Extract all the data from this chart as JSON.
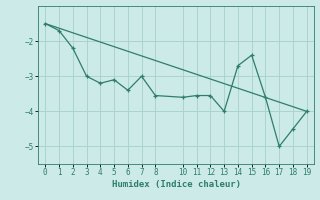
{
  "title": "",
  "xlabel": "Humidex (Indice chaleur)",
  "bg_color": "#cceae7",
  "line_color": "#2e7d6e",
  "grid_color": "#aad4d0",
  "x_data": [
    0,
    1,
    2,
    3,
    4,
    5,
    6,
    7,
    8,
    10,
    11,
    12,
    13,
    14,
    15,
    16,
    17,
    18,
    19
  ],
  "y_data": [
    -1.5,
    -1.7,
    -2.2,
    -3.0,
    -3.2,
    -3.1,
    -3.4,
    -3.0,
    -3.55,
    -3.6,
    -3.55,
    -3.55,
    -4.0,
    -2.7,
    -2.4,
    -3.6,
    -5.0,
    -4.5,
    -4.0
  ],
  "trend_x": [
    0,
    19
  ],
  "trend_y": [
    -1.5,
    -4.0
  ],
  "ylim": [
    -5.5,
    -1.0
  ],
  "xlim": [
    -0.5,
    19.5
  ],
  "yticks": [
    -5,
    -4,
    -3,
    -2
  ],
  "xticks": [
    0,
    1,
    2,
    3,
    4,
    5,
    6,
    7,
    8,
    10,
    11,
    12,
    13,
    14,
    15,
    16,
    17,
    18,
    19
  ]
}
